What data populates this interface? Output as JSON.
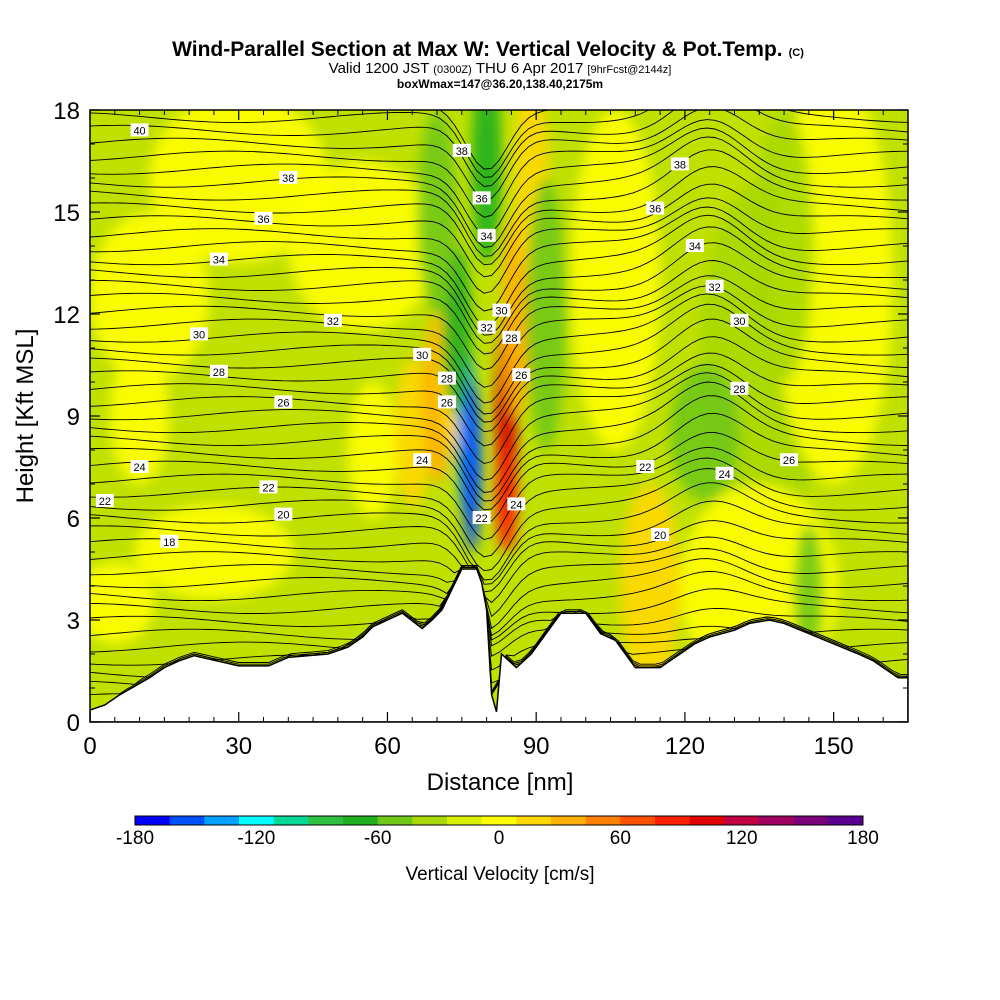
{
  "header": {
    "title": "Wind-Parallel Section at Max W: Vertical Velocity & Pot.Temp.",
    "title_mark": "(C)",
    "valid_prefix": "Valid 1200 JST",
    "valid_zone": "(0300Z)",
    "valid_date": "THU 6 Apr 2017",
    "valid_fcst": "[9hrFcst@2144z]",
    "box_info": "boxWmax=147@36.20,138.40,2175m"
  },
  "chart_data": {
    "type": "heatmap",
    "xlabel": "Distance [nm]",
    "ylabel": "Height [Kft MSL]",
    "xlim": [
      0,
      165
    ],
    "ylim": [
      0,
      18
    ],
    "xticks": [
      0,
      30,
      60,
      90,
      120,
      150
    ],
    "yticks": [
      0,
      3,
      6,
      9,
      12,
      15,
      18
    ],
    "colorbar": {
      "label": "Vertical Velocity [cm/s]",
      "range": [
        -180,
        180
      ],
      "step": 20,
      "ticks": [
        -180,
        -120,
        -60,
        0,
        60,
        120,
        180
      ],
      "colors": [
        "#0000ff",
        "#0050ff",
        "#00a0ff",
        "#00ffff",
        "#00d898",
        "#30c040",
        "#20b020",
        "#70c818",
        "#a8d800",
        "#d8f000",
        "#ffff00",
        "#ffd800",
        "#ffb000",
        "#ff8000",
        "#ff5000",
        "#ff2000",
        "#e00000",
        "#c00040",
        "#a00060",
        "#7a007a",
        "#5a0090"
      ]
    },
    "terrain_kft": [
      [
        0,
        0.35
      ],
      [
        3,
        0.5
      ],
      [
        6,
        0.8
      ],
      [
        9,
        1.05
      ],
      [
        12,
        1.3
      ],
      [
        15,
        1.6
      ],
      [
        18,
        1.8
      ],
      [
        21,
        1.95
      ],
      [
        30,
        1.65
      ],
      [
        36,
        1.65
      ],
      [
        40,
        1.9
      ],
      [
        48,
        2.0
      ],
      [
        52,
        2.2
      ],
      [
        55,
        2.5
      ],
      [
        57,
        2.8
      ],
      [
        60,
        3.0
      ],
      [
        63,
        3.2
      ],
      [
        67,
        2.75
      ],
      [
        69,
        3.0
      ],
      [
        71,
        3.3
      ],
      [
        73,
        3.9
      ],
      [
        75,
        4.5
      ],
      [
        78,
        4.5
      ],
      [
        79,
        4.1
      ],
      [
        80,
        3.3
      ],
      [
        81,
        0.8
      ],
      [
        82,
        0.3
      ],
      [
        83,
        2.0
      ],
      [
        86,
        1.6
      ],
      [
        89,
        2.0
      ],
      [
        92,
        2.6
      ],
      [
        95,
        3.2
      ],
      [
        100,
        3.2
      ],
      [
        103,
        2.6
      ],
      [
        106,
        2.4
      ],
      [
        110,
        1.6
      ],
      [
        115,
        1.6
      ],
      [
        117,
        1.8
      ],
      [
        119,
        2.0
      ],
      [
        122,
        2.3
      ],
      [
        125,
        2.5
      ],
      [
        130,
        2.7
      ],
      [
        133,
        2.9
      ],
      [
        137,
        3.0
      ],
      [
        140,
        2.9
      ],
      [
        145,
        2.6
      ],
      [
        150,
        2.3
      ],
      [
        155,
        2.0
      ],
      [
        158,
        1.8
      ],
      [
        160,
        1.6
      ],
      [
        163,
        1.3
      ],
      [
        165,
        1.3
      ]
    ],
    "cells": [
      {
        "x": 137,
        "y": 11,
        "sx": 14,
        "sy": 5,
        "v": -20
      },
      {
        "x": 150,
        "y": 13,
        "sx": 12,
        "sy": 6,
        "v": 20
      },
      {
        "x": 30,
        "y": 16,
        "sx": 18,
        "sy": 2.5,
        "v": 20
      },
      {
        "x": 12,
        "y": 12.5,
        "sx": 12,
        "sy": 2.5,
        "v": 20
      },
      {
        "x": 55,
        "y": 14,
        "sx": 15,
        "sy": 2.5,
        "v": 20
      },
      {
        "x": 10,
        "y": 9,
        "sx": 6,
        "sy": 2,
        "v": 20
      },
      {
        "x": 25,
        "y": 5,
        "sx": 16,
        "sy": 1.4,
        "v": 20
      },
      {
        "x": 5,
        "y": 3.5,
        "sx": 8,
        "sy": 1.2,
        "v": 20
      },
      {
        "x": 135,
        "y": 4,
        "sx": 16,
        "sy": 3,
        "v": 20
      },
      {
        "x": 113,
        "y": 4,
        "sx": 6,
        "sy": 3,
        "v": 40
      },
      {
        "x": 57,
        "y": 8,
        "sx": 5,
        "sy": 2,
        "v": 20
      },
      {
        "x": 65,
        "y": 8.5,
        "sx": 3.5,
        "sy": 2.2,
        "v": 40
      },
      {
        "x": 70,
        "y": 9.5,
        "sx": 3,
        "sy": 2.5,
        "v": 60
      },
      {
        "x": 73,
        "y": 11,
        "sx": 3,
        "sy": 3,
        "v": 40
      },
      {
        "x": 76,
        "y": 8.5,
        "sx": 2,
        "sy": 2.5,
        "v": -140
      },
      {
        "x": 77,
        "y": 7.5,
        "sx": 2,
        "sy": 2.5,
        "v": -160
      },
      {
        "x": 74,
        "y": 11.5,
        "sx": 3,
        "sy": 2.5,
        "v": -60
      },
      {
        "x": 80,
        "y": 16.5,
        "sx": 3,
        "sy": 3,
        "v": -60
      },
      {
        "x": 84,
        "y": 9,
        "sx": 2.2,
        "sy": 3,
        "v": 150
      },
      {
        "x": 84,
        "y": 6.5,
        "sx": 2.2,
        "sy": 1.5,
        "v": 120
      },
      {
        "x": 86,
        "y": 12,
        "sx": 3,
        "sy": 3,
        "v": 60
      },
      {
        "x": 89,
        "y": 16,
        "sx": 3.5,
        "sy": 3,
        "v": 40
      },
      {
        "x": 92,
        "y": 12,
        "sx": 4,
        "sy": 4,
        "v": -40
      },
      {
        "x": 70,
        "y": 15,
        "sx": 4,
        "sy": 3,
        "v": -30
      },
      {
        "x": 124,
        "y": 8.5,
        "sx": 7,
        "sy": 2,
        "v": -40
      },
      {
        "x": 140,
        "y": 14,
        "sx": 6,
        "sy": 4,
        "v": -20
      },
      {
        "x": 145,
        "y": 3.8,
        "sx": 3,
        "sy": 2,
        "v": -40
      },
      {
        "x": 106,
        "y": 13,
        "sx": 9,
        "sy": 5,
        "v": 20
      }
    ],
    "contour_labels": [
      {
        "x": 10,
        "y": 17.4,
        "v": 40
      },
      {
        "x": 40,
        "y": 16.0,
        "v": 38
      },
      {
        "x": 35,
        "y": 14.8,
        "v": 36
      },
      {
        "x": 26,
        "y": 13.6,
        "v": 34
      },
      {
        "x": 49,
        "y": 11.8,
        "v": 32
      },
      {
        "x": 22,
        "y": 11.4,
        "v": 30
      },
      {
        "x": 26,
        "y": 10.3,
        "v": 28
      },
      {
        "x": 39,
        "y": 9.4,
        "v": 26
      },
      {
        "x": 10,
        "y": 7.5,
        "v": 24
      },
      {
        "x": 36,
        "y": 6.9,
        "v": 22
      },
      {
        "x": 3,
        "y": 6.5,
        "v": 22
      },
      {
        "x": 39,
        "y": 6.1,
        "v": 20
      },
      {
        "x": 16,
        "y": 5.3,
        "v": 18
      },
      {
        "x": 75,
        "y": 16.8,
        "v": 38
      },
      {
        "x": 79,
        "y": 15.4,
        "v": 36
      },
      {
        "x": 80,
        "y": 14.3,
        "v": 34
      },
      {
        "x": 83,
        "y": 12.1,
        "v": 30
      },
      {
        "x": 80,
        "y": 11.6,
        "v": 32
      },
      {
        "x": 85,
        "y": 11.3,
        "v": 28
      },
      {
        "x": 67,
        "y": 10.8,
        "v": 30
      },
      {
        "x": 72,
        "y": 10.1,
        "v": 28
      },
      {
        "x": 87,
        "y": 10.2,
        "v": 26
      },
      {
        "x": 72,
        "y": 9.4,
        "v": 26
      },
      {
        "x": 67,
        "y": 7.7,
        "v": 24
      },
      {
        "x": 79,
        "y": 6.0,
        "v": 22
      },
      {
        "x": 86,
        "y": 6.4,
        "v": 24
      },
      {
        "x": 119,
        "y": 16.4,
        "v": 38
      },
      {
        "x": 114,
        "y": 15.1,
        "v": 36
      },
      {
        "x": 122,
        "y": 14.0,
        "v": 34
      },
      {
        "x": 126,
        "y": 12.8,
        "v": 32
      },
      {
        "x": 131,
        "y": 11.8,
        "v": 30
      },
      {
        "x": 131,
        "y": 9.8,
        "v": 28
      },
      {
        "x": 141,
        "y": 7.7,
        "v": 26
      },
      {
        "x": 112,
        "y": 7.5,
        "v": 22
      },
      {
        "x": 128,
        "y": 7.3,
        "v": 24
      },
      {
        "x": 115,
        "y": 5.5,
        "v": 20
      }
    ]
  }
}
